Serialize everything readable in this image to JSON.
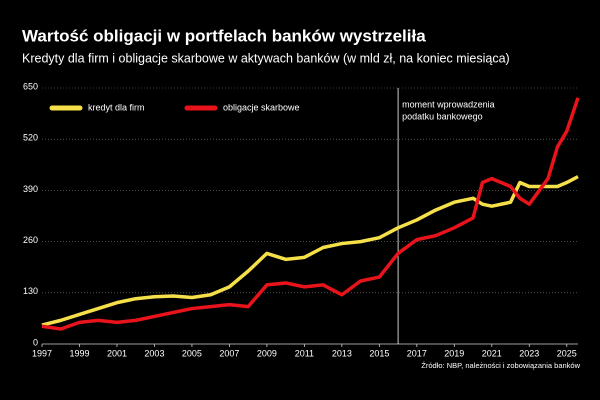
{
  "chart_data": {
    "type": "line",
    "title": "Wartość obligacji w portfelach banków wystrzeliła",
    "subtitle": "Kredyty dla firm i obligacje skarbowe w aktywach banków (w mld zł, na koniec miesiąca)",
    "source": "Źródło: NBP, należności i zobowiązania banków",
    "x": [
      1997,
      1998,
      1999,
      2000,
      2001,
      2002,
      2003,
      2004,
      2005,
      2006,
      2007,
      2008,
      2009,
      2010,
      2011,
      2012,
      2013,
      2014,
      2015,
      2016,
      2017,
      2018,
      2019,
      2020,
      2020.5,
      2021,
      2022,
      2022.5,
      2023,
      2024,
      2024.5,
      2025,
      2025.6
    ],
    "series": [
      {
        "name": "kredyt dla firm",
        "color": "#f5e04a",
        "values": [
          48,
          60,
          75,
          90,
          105,
          115,
          120,
          122,
          118,
          125,
          145,
          185,
          230,
          215,
          220,
          245,
          255,
          260,
          270,
          295,
          315,
          340,
          360,
          370,
          355,
          350,
          360,
          410,
          400,
          400,
          400,
          410,
          425
        ]
      },
      {
        "name": "obligacje skarbowe",
        "color": "#e8131b",
        "values": [
          45,
          38,
          55,
          60,
          55,
          60,
          70,
          80,
          90,
          95,
          100,
          95,
          150,
          155,
          145,
          150,
          125,
          160,
          170,
          230,
          265,
          275,
          295,
          320,
          410,
          420,
          400,
          370,
          355,
          420,
          500,
          540,
          625
        ]
      }
    ],
    "annotation": {
      "x": 2016,
      "text": [
        "moment wprowadzenia",
        "podatku bankowego"
      ]
    },
    "xlim": [
      1997,
      2025.6
    ],
    "xticks": [
      1997,
      1999,
      2001,
      2003,
      2005,
      2007,
      2009,
      2011,
      2013,
      2015,
      2017,
      2019,
      2021,
      2023,
      2025
    ],
    "ylim": [
      0,
      650
    ],
    "yticks": [
      0,
      130,
      260,
      390,
      520,
      650
    ],
    "grid": true,
    "legend": "upper left"
  }
}
